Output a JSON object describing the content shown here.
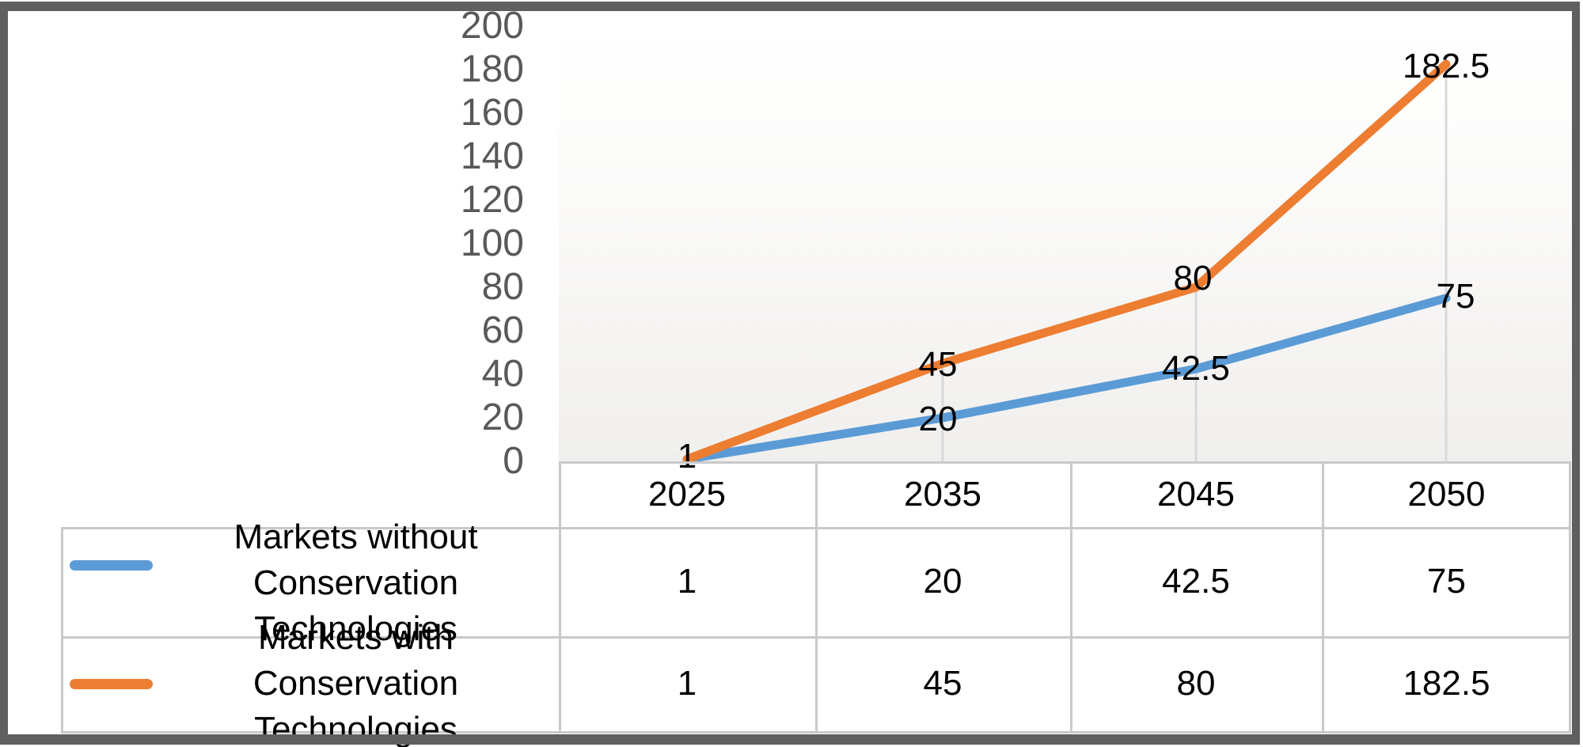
{
  "chart_data": {
    "type": "line",
    "title": "",
    "categories": [
      "2025",
      "2035",
      "2045",
      "2050"
    ],
    "series": [
      {
        "name": "Markets without Conservation Technologies",
        "values": [
          1,
          20,
          42.5,
          75
        ],
        "labels": [
          "1",
          "20",
          "42.5",
          "75"
        ],
        "color": "#5B9BD5"
      },
      {
        "name": "Markets with Conservation Technologies",
        "values": [
          1,
          45,
          80,
          182.5
        ],
        "labels": [
          "1",
          "45",
          "80",
          "182.5"
        ],
        "color": "#ED7D31"
      }
    ],
    "y_axis": {
      "min": 0,
      "max": 200,
      "step": 20,
      "tick_labels": [
        "0",
        "20",
        "40",
        "60",
        "80",
        "100",
        "120",
        "140",
        "160",
        "180",
        "200"
      ]
    },
    "ylim": [
      0,
      200
    ],
    "grid": "vertical drop lines at data points only",
    "data_label_position": "centered on points",
    "legend_position": "left column of data table below chart"
  },
  "data_table": {
    "header_row": [
      "2025",
      "2035",
      "2045",
      "2050"
    ],
    "rows": [
      {
        "label_lines": [
          "Markets without",
          "Conservation Technologies"
        ],
        "swatch": "blue-line-swatch",
        "cells": [
          "1",
          "20",
          "42.5",
          "75"
        ]
      },
      {
        "label_lines": [
          "Markets with Conservation",
          "Technologies"
        ],
        "swatch": "orange-line-swatch",
        "cells": [
          "1",
          "45",
          "80",
          "182.5"
        ]
      }
    ]
  },
  "colors": {
    "series_blue": "#5B9BD5",
    "series_orange": "#ED7D31",
    "axis_text": "#595959",
    "table_text": "#000000",
    "table_border": "#c9c9c9",
    "drop_line": "#d9d9d9",
    "frame": "#5f5f5f"
  }
}
